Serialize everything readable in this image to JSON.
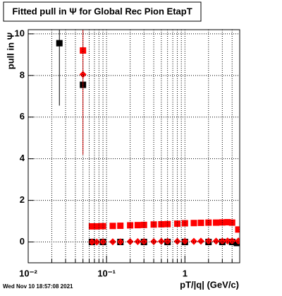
{
  "chart_data": {
    "type": "scatter",
    "title": "Fitted pull in  Ψ  for Global Rec Pion EtapT",
    "x_label": "pT/|q| (GeV/c)",
    "y_label": "pull in  Ψ",
    "timestamp": "Wed Nov 10 18:57:08 2021",
    "log_x": true,
    "grid": true,
    "xlim": [
      0.01,
      5
    ],
    "ylim": [
      -1,
      10.2
    ],
    "xticks": [
      {
        "value": 0.01,
        "label": "10⁻²"
      },
      {
        "value": 0.1,
        "label": "10⁻¹"
      },
      1
    ],
    "xminorticks": [
      0.02,
      0.03,
      0.04,
      0.05,
      0.06,
      0.07,
      0.08,
      0.09,
      0.2,
      0.3,
      0.4,
      0.5,
      0.6,
      0.7,
      0.8,
      0.9,
      2,
      3,
      4,
      5
    ],
    "yticks": [
      0,
      2,
      4,
      6,
      8,
      10
    ],
    "series": [
      {
        "color": "#000000",
        "marker": "square",
        "x": [
          0.025,
          0.05,
          0.065,
          0.09,
          0.15,
          0.3,
          0.6,
          1.0,
          2.0,
          3.0,
          4.0,
          4.6
        ],
        "values": [
          9.55,
          7.55,
          0.0,
          0.0,
          0.0,
          0.0,
          0.0,
          0.0,
          0.0,
          0.0,
          0.0,
          -0.05
        ],
        "yerr": [
          3,
          0.1,
          0.03,
          0.03,
          0.03,
          0.03,
          0.03,
          0.03,
          0.03,
          0.03,
          0.03,
          0.03
        ]
      },
      {
        "color": "#ff0000",
        "marker": "square",
        "x": [
          0.05,
          0.065,
          0.075,
          0.09,
          0.12,
          0.15,
          0.2,
          0.25,
          0.3,
          0.4,
          0.5,
          0.6,
          0.8,
          1.0,
          1.3,
          1.6,
          2.0,
          2.5,
          3.0,
          3.5,
          4.0,
          4.8
        ],
        "values": [
          9.2,
          0.75,
          0.75,
          0.76,
          0.77,
          0.78,
          0.8,
          0.81,
          0.82,
          0.84,
          0.85,
          0.86,
          0.88,
          0.9,
          0.91,
          0.92,
          0.93,
          0.93,
          0.94,
          0.95,
          0.93,
          0.6
        ],
        "yerr": [
          5,
          0.05,
          0.05,
          0.04,
          0.04,
          0.04,
          0.04,
          0.04,
          0.04,
          0.04,
          0.04,
          0.04,
          0.04,
          0.04,
          0.04,
          0.04,
          0.04,
          0.04,
          0.05,
          0.05,
          0.06,
          0.08
        ]
      },
      {
        "color": "#ff0000",
        "marker": "diamond",
        "x": [
          0.05,
          0.065,
          0.075,
          0.09,
          0.12,
          0.15,
          0.2,
          0.25,
          0.3,
          0.4,
          0.5,
          0.6,
          0.8,
          1.0,
          1.3,
          1.6,
          2.0,
          2.5,
          3.0,
          3.5,
          4.0,
          4.8
        ],
        "values": [
          8.05,
          0.0,
          0.0,
          0.01,
          0.01,
          0.01,
          0.02,
          0.02,
          0.02,
          0.02,
          0.03,
          0.03,
          0.03,
          0.03,
          0.03,
          0.04,
          0.04,
          0.04,
          0.04,
          0.05,
          0.05,
          0.05
        ],
        "yerr": [
          0.2,
          0.03,
          0.03,
          0.03,
          0.03,
          0.03,
          0.03,
          0.03,
          0.03,
          0.03,
          0.03,
          0.03,
          0.03,
          0.03,
          0.03,
          0.03,
          0.03,
          0.03,
          0.03,
          0.03,
          0.03,
          0.04
        ]
      }
    ]
  }
}
